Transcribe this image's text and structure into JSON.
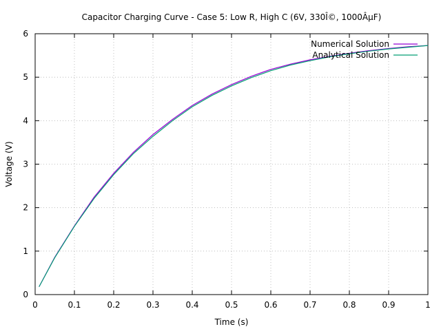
{
  "chart_data": {
    "type": "line",
    "title": "Capacitor Charging Curve - Case 5: Low R, High C (6V, 330Î©, 1000ÂµF)",
    "xlabel": "Time (s)",
    "ylabel": "Voltage (V)",
    "xlim": [
      0,
      1
    ],
    "ylim": [
      0,
      6
    ],
    "xticks": [
      "0",
      "0.1",
      "0.2",
      "0.3",
      "0.4",
      "0.5",
      "0.6",
      "0.7",
      "0.8",
      "0.9",
      "1"
    ],
    "yticks": [
      "0",
      "1",
      "2",
      "3",
      "4",
      "5",
      "6"
    ],
    "grid": true,
    "legend_position": "top-right",
    "series": [
      {
        "name": "Numerical Solution",
        "color": "#9400d3",
        "x": [
          0.01,
          0.05,
          0.1,
          0.15,
          0.2,
          0.25,
          0.3,
          0.35,
          0.4,
          0.45,
          0.5,
          0.55,
          0.6,
          0.65,
          0.7,
          0.75,
          0.8,
          0.85,
          0.9,
          0.95,
          1.0
        ],
        "y": [
          0.18,
          0.86,
          1.58,
          2.24,
          2.79,
          3.27,
          3.68,
          4.03,
          4.35,
          4.61,
          4.83,
          5.02,
          5.18,
          5.3,
          5.4,
          5.48,
          5.55,
          5.61,
          5.66,
          5.7,
          5.73
        ]
      },
      {
        "name": "Analytical Solution",
        "color": "#009e73",
        "x": [
          0.01,
          0.05,
          0.1,
          0.15,
          0.2,
          0.25,
          0.3,
          0.35,
          0.4,
          0.45,
          0.5,
          0.55,
          0.6,
          0.65,
          0.7,
          0.75,
          0.8,
          0.85,
          0.9,
          0.95,
          1.0
        ],
        "y": [
          0.18,
          0.85,
          1.57,
          2.21,
          2.76,
          3.24,
          3.64,
          4.0,
          4.32,
          4.58,
          4.8,
          4.99,
          5.15,
          5.28,
          5.38,
          5.47,
          5.54,
          5.6,
          5.65,
          5.69,
          5.73
        ]
      }
    ]
  }
}
